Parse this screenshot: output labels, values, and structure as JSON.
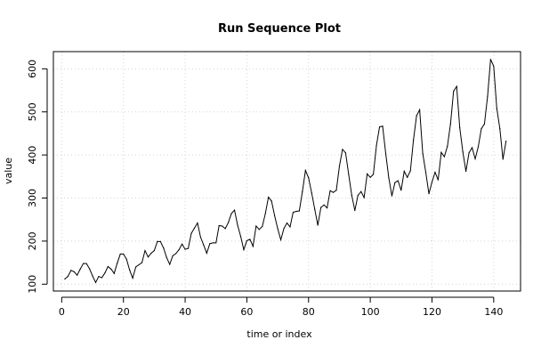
{
  "chart_data": {
    "type": "line",
    "title": "Run Sequence Plot",
    "xlabel": "time or index",
    "ylabel": "value",
    "xlim": [
      -2.7,
      148.7
    ],
    "ylim": [
      84.08,
      639.92
    ],
    "xticks": [
      0,
      20,
      40,
      60,
      80,
      100,
      120,
      140
    ],
    "yticks": [
      100,
      200,
      300,
      400,
      500,
      600
    ],
    "grid": true,
    "series": [
      {
        "x": [
          1,
          2,
          3,
          4,
          5,
          6,
          7,
          8,
          9,
          10,
          11,
          12,
          13,
          14,
          15,
          16,
          17,
          18,
          19,
          20,
          21,
          22,
          23,
          24,
          25,
          26,
          27,
          28,
          29,
          30,
          31,
          32,
          33,
          34,
          35,
          36,
          37,
          38,
          39,
          40,
          41,
          42,
          43,
          44,
          45,
          46,
          47,
          48,
          49,
          50,
          51,
          52,
          53,
          54,
          55,
          56,
          57,
          58,
          59,
          60,
          61,
          62,
          63,
          64,
          65,
          66,
          67,
          68,
          69,
          70,
          71,
          72,
          73,
          74,
          75,
          76,
          77,
          78,
          79,
          80,
          81,
          82,
          83,
          84,
          85,
          86,
          87,
          88,
          89,
          90,
          91,
          92,
          93,
          94,
          95,
          96,
          97,
          98,
          99,
          100,
          101,
          102,
          103,
          104,
          105,
          106,
          107,
          108,
          109,
          110,
          111,
          112,
          113,
          114,
          115,
          116,
          117,
          118,
          119,
          120,
          121,
          122,
          123,
          124,
          125,
          126,
          127,
          128,
          129,
          130,
          131,
          132,
          133,
          134,
          135,
          136,
          137,
          138,
          139,
          140,
          141,
          142,
          143,
          144
        ],
        "values": [
          112,
          118,
          132,
          129,
          121,
          135,
          148,
          148,
          136,
          119,
          104,
          118,
          115,
          126,
          141,
          135,
          125,
          149,
          170,
          170,
          158,
          133,
          114,
          140,
          145,
          150,
          178,
          163,
          172,
          178,
          199,
          199,
          184,
          162,
          146,
          166,
          171,
          180,
          193,
          181,
          183,
          218,
          230,
          242,
          209,
          191,
          172,
          194,
          196,
          196,
          236,
          235,
          229,
          243,
          264,
          272,
          237,
          211,
          180,
          201,
          204,
          188,
          235,
          227,
          234,
          264,
          302,
          293,
          259,
          229,
          203,
          229,
          242,
          233,
          267,
          269,
          270,
          315,
          364,
          347,
          312,
          274,
          237,
          278,
          284,
          277,
          317,
          313,
          318,
          374,
          413,
          405,
          355,
          306,
          271,
          306,
          315,
          301,
          356,
          348,
          355,
          422,
          465,
          467,
          404,
          347,
          305,
          336,
          340,
          318,
          362,
          348,
          363,
          435,
          491,
          505,
          404,
          359,
          310,
          337,
          360,
          342,
          406,
          396,
          420,
          472,
          548,
          559,
          463,
          407,
          362,
          405,
          417,
          391,
          419,
          461,
          472,
          535,
          622,
          606,
          508,
          461,
          390,
          432
        ]
      }
    ]
  }
}
